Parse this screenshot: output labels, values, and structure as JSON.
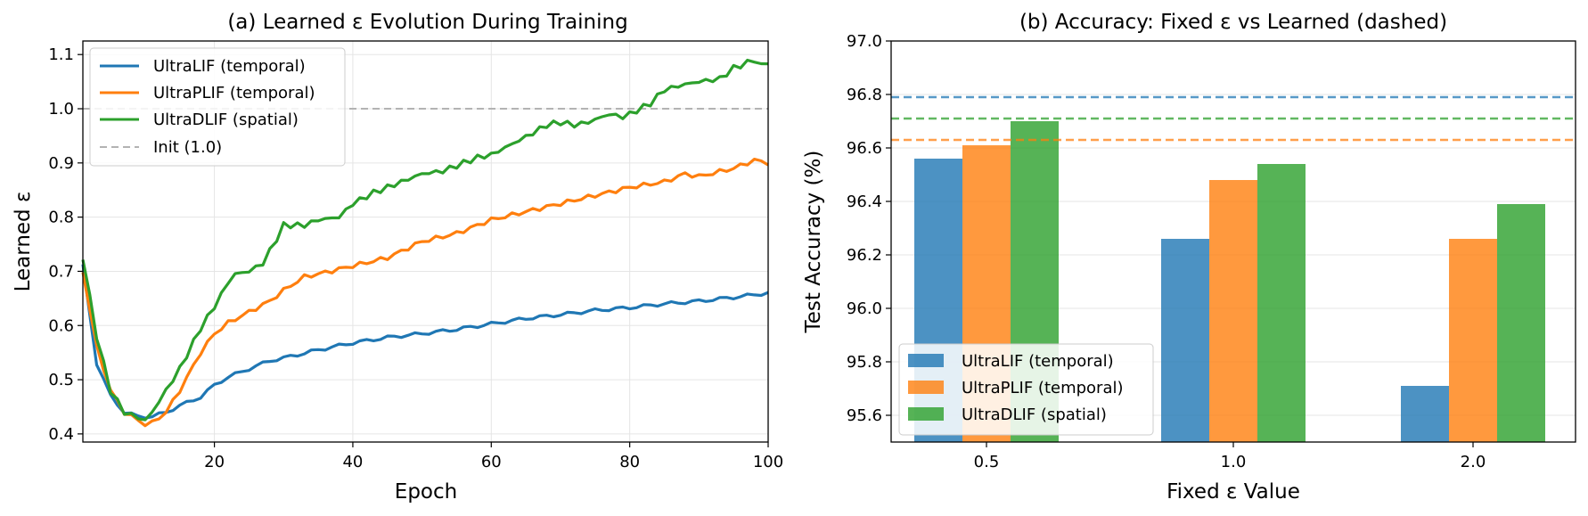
{
  "chart_data": [
    {
      "type": "line",
      "title": "(a) Learned ε Evolution During Training",
      "xlabel": "Epoch",
      "ylabel": "Learned ε",
      "xlim": [
        1,
        100
      ],
      "ylim": [
        0.385,
        1.125
      ],
      "xticks": [
        20,
        40,
        60,
        80,
        100
      ],
      "yticks": [
        0.4,
        0.5,
        0.6,
        0.7,
        0.8,
        0.9,
        1.0,
        1.1
      ],
      "grid": true,
      "legend_position": "top-left",
      "series": [
        {
          "name": "UltraLIF (temporal)",
          "color": "#1f77b4",
          "anchors": [
            [
              1,
              0.71
            ],
            [
              3,
              0.53
            ],
            [
              5,
              0.47
            ],
            [
              7,
              0.44
            ],
            [
              9,
              0.432
            ],
            [
              11,
              0.432
            ],
            [
              13,
              0.44
            ],
            [
              15,
              0.452
            ],
            [
              18,
              0.468
            ],
            [
              20,
              0.49
            ],
            [
              22,
              0.505
            ],
            [
              25,
              0.52
            ],
            [
              28,
              0.535
            ],
            [
              30,
              0.54
            ],
            [
              35,
              0.555
            ],
            [
              40,
              0.568
            ],
            [
              45,
              0.578
            ],
            [
              50,
              0.585
            ],
            [
              55,
              0.593
            ],
            [
              60,
              0.603
            ],
            [
              65,
              0.613
            ],
            [
              70,
              0.62
            ],
            [
              75,
              0.628
            ],
            [
              80,
              0.633
            ],
            [
              85,
              0.64
            ],
            [
              90,
              0.645
            ],
            [
              95,
              0.652
            ],
            [
              100,
              0.66
            ]
          ],
          "wiggle": 0.003
        },
        {
          "name": "UltraPLIF (temporal)",
          "color": "#ff7f0e",
          "anchors": [
            [
              1,
              0.7
            ],
            [
              3,
              0.56
            ],
            [
              5,
              0.48
            ],
            [
              7,
              0.44
            ],
            [
              9,
              0.425
            ],
            [
              10,
              0.418
            ],
            [
              11,
              0.42
            ],
            [
              13,
              0.44
            ],
            [
              15,
              0.48
            ],
            [
              18,
              0.55
            ],
            [
              20,
              0.585
            ],
            [
              22,
              0.605
            ],
            [
              25,
              0.625
            ],
            [
              28,
              0.645
            ],
            [
              30,
              0.665
            ],
            [
              33,
              0.69
            ],
            [
              35,
              0.695
            ],
            [
              40,
              0.71
            ],
            [
              45,
              0.725
            ],
            [
              50,
              0.755
            ],
            [
              55,
              0.77
            ],
            [
              60,
              0.795
            ],
            [
              65,
              0.81
            ],
            [
              70,
              0.825
            ],
            [
              75,
              0.84
            ],
            [
              80,
              0.855
            ],
            [
              85,
              0.865
            ],
            [
              88,
              0.88
            ],
            [
              90,
              0.875
            ],
            [
              95,
              0.89
            ],
            [
              98,
              0.905
            ],
            [
              100,
              0.9
            ]
          ],
          "wiggle": 0.004
        },
        {
          "name": "UltraDLIF (spatial)",
          "color": "#2ca02c",
          "anchors": [
            [
              1,
              0.725
            ],
            [
              3,
              0.58
            ],
            [
              5,
              0.48
            ],
            [
              7,
              0.44
            ],
            [
              9,
              0.43
            ],
            [
              10,
              0.425
            ],
            [
              11,
              0.44
            ],
            [
              13,
              0.48
            ],
            [
              15,
              0.52
            ],
            [
              18,
              0.595
            ],
            [
              20,
              0.635
            ],
            [
              22,
              0.68
            ],
            [
              23,
              0.695
            ],
            [
              25,
              0.7
            ],
            [
              27,
              0.715
            ],
            [
              29,
              0.76
            ],
            [
              30,
              0.785
            ],
            [
              33,
              0.785
            ],
            [
              35,
              0.795
            ],
            [
              38,
              0.8
            ],
            [
              40,
              0.825
            ],
            [
              43,
              0.845
            ],
            [
              45,
              0.855
            ],
            [
              48,
              0.87
            ],
            [
              50,
              0.88
            ],
            [
              53,
              0.885
            ],
            [
              55,
              0.895
            ],
            [
              58,
              0.91
            ],
            [
              60,
              0.915
            ],
            [
              63,
              0.935
            ],
            [
              66,
              0.955
            ],
            [
              68,
              0.97
            ],
            [
              70,
              0.975
            ],
            [
              72,
              0.97
            ],
            [
              74,
              0.975
            ],
            [
              77,
              0.99
            ],
            [
              79,
              0.985
            ],
            [
              80,
              0.99
            ],
            [
              83,
              1.01
            ],
            [
              85,
              1.035
            ],
            [
              88,
              1.045
            ],
            [
              90,
              1.05
            ],
            [
              93,
              1.055
            ],
            [
              95,
              1.075
            ],
            [
              97,
              1.085
            ],
            [
              98,
              1.09
            ],
            [
              99,
              1.08
            ],
            [
              100,
              1.085
            ]
          ],
          "wiggle": 0.005
        }
      ],
      "reference_lines": [
        {
          "name": "Init (1.0)",
          "y": 1.0,
          "color": "#b3b3b3",
          "style": "dashed"
        }
      ]
    },
    {
      "type": "bar",
      "title": "(b) Accuracy: Fixed ε vs Learned (dashed)",
      "xlabel": "Fixed ε Value",
      "ylabel": "Test Accuracy (%)",
      "categories": [
        "0.5",
        "1.0",
        "2.0"
      ],
      "ylim": [
        95.5,
        97.0
      ],
      "yticks": [
        "95.6",
        "95.8",
        "96.0",
        "96.2",
        "96.4",
        "96.6",
        "96.8",
        "97.0"
      ],
      "grid": true,
      "legend_position": "bottom-left",
      "series": [
        {
          "name": "UltraLIF (temporal)",
          "color": "#1f77b4",
          "values": [
            96.56,
            96.26,
            95.71
          ]
        },
        {
          "name": "UltraPLIF (temporal)",
          "color": "#ff7f0e",
          "values": [
            96.61,
            96.48,
            96.26
          ]
        },
        {
          "name": "UltraDLIF (spatial)",
          "color": "#2ca02c",
          "values": [
            96.7,
            96.54,
            96.39
          ]
        }
      ],
      "learned_reference_lines": [
        {
          "series": "UltraLIF (temporal)",
          "y": 96.79,
          "color": "#1f77b4",
          "style": "dashed"
        },
        {
          "series": "UltraDLIF (spatial)",
          "y": 96.71,
          "color": "#2ca02c",
          "style": "dashed"
        },
        {
          "series": "UltraPLIF (temporal)",
          "y": 96.63,
          "color": "#ff7f0e",
          "style": "dashed"
        }
      ]
    }
  ]
}
